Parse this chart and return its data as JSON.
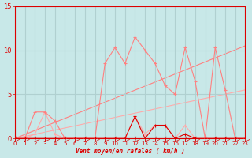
{
  "bg_color": "#c8e8e8",
  "grid_color": "#b0d0d0",
  "dark_red": "#dd0000",
  "light_red1": "#ff8080",
  "light_red2": "#ffaaaa",
  "xlim": [
    0,
    23
  ],
  "ylim": [
    0,
    15
  ],
  "yticks": [
    0,
    5,
    10,
    15
  ],
  "xticks": [
    0,
    1,
    2,
    3,
    4,
    5,
    6,
    7,
    8,
    9,
    10,
    11,
    12,
    13,
    14,
    15,
    16,
    17,
    18,
    19,
    20,
    21,
    22,
    23
  ],
  "xlabel": "Vent moyen/en rafales ( km/h )",
  "series_gust_x": [
    0,
    1,
    2,
    3,
    4,
    5,
    6,
    7,
    8,
    9,
    10,
    11,
    12,
    13,
    14,
    15,
    16,
    17,
    18,
    19,
    20,
    21,
    22,
    23
  ],
  "series_gust_y": [
    0,
    0,
    3,
    3,
    2,
    0,
    0,
    0,
    0,
    8.5,
    10.3,
    8.5,
    11.5,
    10,
    8.5,
    6,
    5,
    10.3,
    6.5,
    0,
    10.3,
    5.5,
    0,
    0
  ],
  "series_mean_x": [
    0,
    1,
    2,
    3,
    4,
    5,
    6,
    7,
    8,
    9,
    10,
    11,
    12,
    13,
    14,
    15,
    16,
    17,
    18,
    19,
    20,
    21,
    22,
    23
  ],
  "series_mean_y": [
    0,
    0,
    0.5,
    3,
    0.5,
    0,
    0,
    0,
    0,
    0,
    0,
    0,
    2.5,
    0.5,
    1.5,
    1.5,
    0,
    1.5,
    0,
    0,
    0,
    0,
    0,
    0
  ],
  "series_dark_x": [
    0,
    1,
    2,
    3,
    4,
    5,
    6,
    7,
    8,
    9,
    10,
    11,
    12,
    13,
    14,
    15,
    16,
    17,
    18,
    19,
    20,
    21,
    22,
    23
  ],
  "series_dark_y": [
    0,
    0,
    0,
    0,
    0,
    0,
    0,
    0,
    0,
    0,
    0,
    0,
    2.5,
    0,
    1.5,
    1.5,
    0,
    0.5,
    0,
    0,
    0,
    0,
    0,
    0
  ],
  "trend1_x": [
    0,
    23
  ],
  "trend1_y": [
    0,
    10.5
  ],
  "trend2_x": [
    0,
    23
  ],
  "trend2_y": [
    0,
    5.5
  ]
}
